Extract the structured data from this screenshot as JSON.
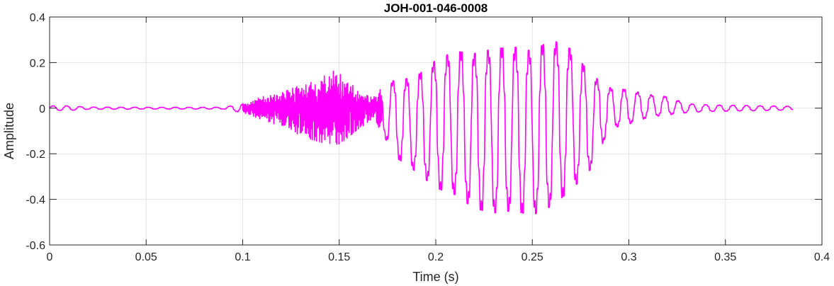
{
  "chart_data": {
    "type": "line",
    "title": "JOH-001-046-0008",
    "xlabel": "Time (s)",
    "ylabel": "Amplitude",
    "xlim": [
      0,
      0.4
    ],
    "ylim": [
      -0.6,
      0.4
    ],
    "grid": true,
    "x_ticks": [
      0,
      0.05,
      0.1,
      0.15,
      0.2,
      0.25,
      0.3,
      0.35,
      0.4
    ],
    "x_tick_labels": [
      "0",
      "0.05",
      "0.1",
      "0.15",
      "0.2",
      "0.25",
      "0.3",
      "0.35",
      "0.4"
    ],
    "y_ticks": [
      -0.6,
      -0.4,
      -0.2,
      0,
      0.2,
      0.4
    ],
    "y_tick_labels": [
      "-0.6",
      "-0.4",
      "-0.2",
      "0",
      "0.2",
      "0.4"
    ],
    "series": [
      {
        "color": "#ff00ff",
        "duration": 0.385,
        "envelope": {
          "x": [
            0,
            0.01,
            0.02,
            0.05,
            0.09,
            0.1,
            0.11,
            0.12,
            0.13,
            0.14,
            0.15,
            0.16,
            0.168,
            0.175,
            0.18,
            0.19,
            0.2,
            0.21,
            0.22,
            0.23,
            0.24,
            0.25,
            0.26,
            0.27,
            0.28,
            0.29,
            0.3,
            0.31,
            0.32,
            0.33,
            0.34,
            0.36,
            0.385
          ],
          "upper": [
            0.01,
            0.01,
            0.005,
            0.004,
            0.004,
            0.02,
            0.05,
            0.07,
            0.1,
            0.13,
            0.18,
            0.07,
            0.05,
            0.12,
            0.12,
            0.14,
            0.21,
            0.25,
            0.24,
            0.26,
            0.27,
            0.25,
            0.3,
            0.26,
            0.15,
            0.09,
            0.08,
            0.06,
            0.05,
            0.02,
            0.015,
            0.012,
            0.008
          ],
          "lower": [
            -0.01,
            -0.01,
            -0.005,
            -0.004,
            -0.004,
            -0.02,
            -0.05,
            -0.08,
            -0.12,
            -0.15,
            -0.16,
            -0.09,
            -0.05,
            -0.15,
            -0.22,
            -0.28,
            -0.35,
            -0.38,
            -0.44,
            -0.46,
            -0.45,
            -0.47,
            -0.43,
            -0.36,
            -0.27,
            -0.09,
            -0.07,
            -0.04,
            -0.03,
            -0.02,
            -0.015,
            -0.012,
            -0.008
          ]
        }
      }
    ]
  }
}
